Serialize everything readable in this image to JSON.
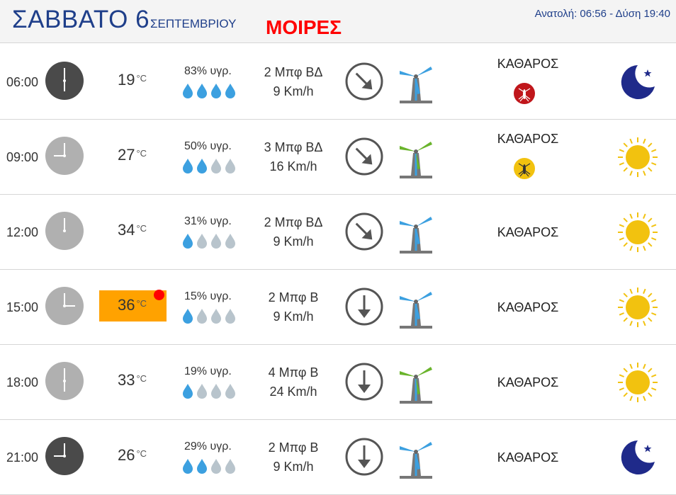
{
  "header": {
    "day": "ΣΑΒΒΑΤΟ 6",
    "month": "ΣΕΠΤΕΜΒΡΙΟΥ",
    "moires_label": "ΜΟΙΡΕΣ",
    "sun_info": "Ανατολή: 06:56  - Δύση 19:40"
  },
  "colors": {
    "accent": "#1f3f8a",
    "alert_red": "#ff0000",
    "hot_temp_bg": "#ffa200",
    "drop_full": "#3ca0e0",
    "drop_empty": "#b8c4cc",
    "dark_clock": "#4a4a4a",
    "light_clock": "#b0b0b0"
  },
  "temp_unit": "°C",
  "rows": [
    {
      "time": "06:00",
      "clock_style": "dark",
      "hour": 6,
      "temp": "19",
      "hot": false,
      "humidity": "83% υγρ.",
      "drops_filled": 4,
      "wind_force": "2 Μπφ ΒΔ",
      "wind_speed": "9 Km/h",
      "wind_arrow": "down-right",
      "turbine_state": "slow",
      "sky": "ΚΑΘΑΡΟΣ",
      "mosquito": "high",
      "weather_icon": "moon-icon"
    },
    {
      "time": "09:00",
      "clock_style": "light",
      "hour": 9,
      "temp": "27",
      "hot": false,
      "humidity": "50% υγρ.",
      "drops_filled": 2,
      "wind_force": "3 Μπφ ΒΔ",
      "wind_speed": "16 Km/h",
      "wind_arrow": "down-right",
      "turbine_state": "active",
      "sky": "ΚΑΘΑΡΟΣ",
      "mosquito": "medium",
      "weather_icon": "sun-icon"
    },
    {
      "time": "12:00",
      "clock_style": "light",
      "hour": 12,
      "temp": "34",
      "hot": false,
      "humidity": "31% υγρ.",
      "drops_filled": 1,
      "wind_force": "2 Μπφ ΒΔ",
      "wind_speed": "9 Km/h",
      "wind_arrow": "down-right",
      "turbine_state": "slow",
      "sky": "ΚΑΘΑΡΟΣ",
      "mosquito": "none",
      "weather_icon": "sun-icon"
    },
    {
      "time": "15:00",
      "clock_style": "light",
      "hour": 3,
      "temp": "36",
      "hot": true,
      "humidity": "15% υγρ.",
      "drops_filled": 1,
      "wind_force": "2 Μπφ Β",
      "wind_speed": "9 Km/h",
      "wind_arrow": "down",
      "turbine_state": "slow",
      "sky": "ΚΑΘΑΡΟΣ",
      "mosquito": "none",
      "weather_icon": "sun-icon"
    },
    {
      "time": "18:00",
      "clock_style": "light",
      "hour": 6,
      "temp": "33",
      "hot": false,
      "humidity": "19% υγρ.",
      "drops_filled": 1,
      "wind_force": "4 Μπφ Β",
      "wind_speed": "24 Km/h",
      "wind_arrow": "down",
      "turbine_state": "active",
      "sky": "ΚΑΘΑΡΟΣ",
      "mosquito": "none",
      "weather_icon": "sun-icon"
    },
    {
      "time": "21:00",
      "clock_style": "dark",
      "hour": 9,
      "temp": "26",
      "hot": false,
      "humidity": "29% υγρ.",
      "drops_filled": 2,
      "wind_force": "2 Μπφ Β",
      "wind_speed": "9 Km/h",
      "wind_arrow": "down",
      "turbine_state": "slow",
      "sky": "ΚΑΘΑΡΟΣ",
      "mosquito": "none",
      "weather_icon": "moon-icon"
    }
  ]
}
